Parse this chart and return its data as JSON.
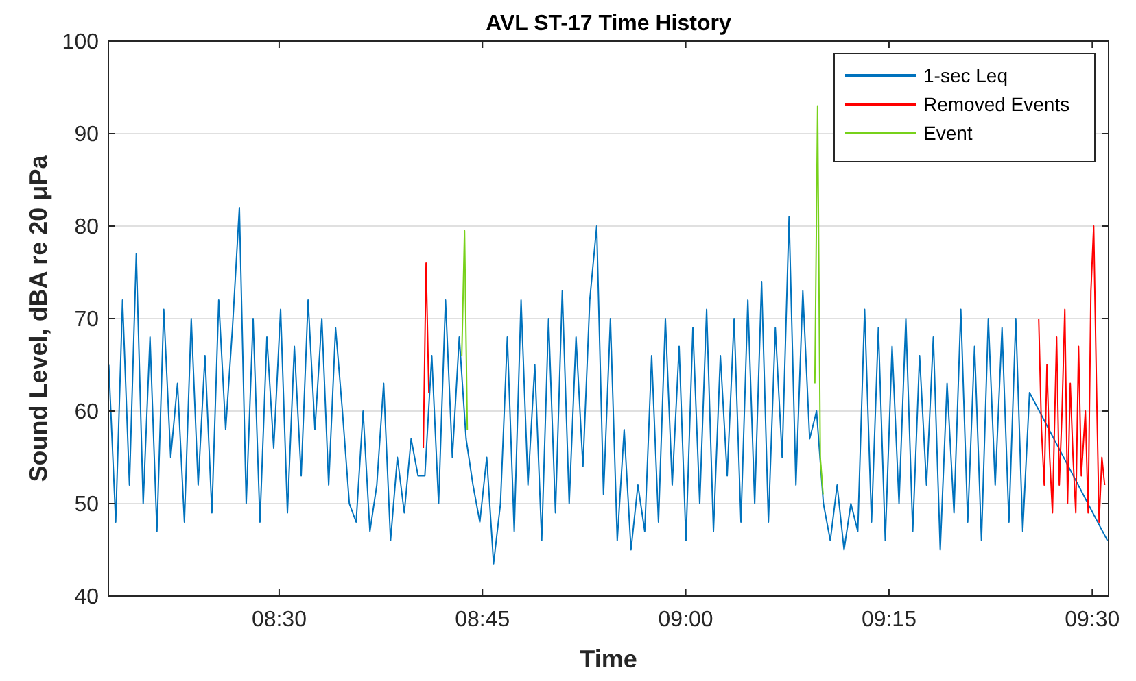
{
  "chart_data": {
    "type": "line",
    "title": "AVL ST-17 Time History",
    "xlabel": "Time",
    "ylabel": "Sound Level, dBA re 20 μPa",
    "xlim": [
      8.29,
      9.52
    ],
    "xticks": [
      {
        "value": 8.5,
        "label": "08:30"
      },
      {
        "value": 8.75,
        "label": "08:45"
      },
      {
        "value": 9,
        "label": "09:00"
      },
      {
        "value": 9.25,
        "label": "09:15"
      },
      {
        "value": 9.5,
        "label": "09:30"
      }
    ],
    "ylim": [
      40,
      100
    ],
    "yticks": [
      40,
      50,
      60,
      70,
      80,
      90,
      100
    ],
    "grid": "y",
    "legend": "top right",
    "line_style": "solid",
    "marker": "none",
    "series": [
      {
        "name": "1-sec Leq",
        "color": "#0072bd",
        "x": [
          8.2905,
          8.299,
          8.3074,
          8.3159,
          8.3243,
          8.3328,
          8.3412,
          8.3497,
          8.3581,
          8.3666,
          8.375,
          8.3835,
          8.3919,
          8.4004,
          8.4088,
          8.4173,
          8.4257,
          8.4342,
          8.4426,
          8.4511,
          8.4595,
          8.468,
          8.4764,
          8.4849,
          8.4933,
          8.5018,
          8.5102,
          8.5187,
          8.5271,
          8.5356,
          8.544,
          8.5525,
          8.5609,
          8.5694,
          8.5778,
          8.5863,
          8.5947,
          8.6032,
          8.6116,
          8.6201,
          8.6285,
          8.637,
          8.6454,
          8.6539,
          8.6623,
          8.6708,
          8.6792,
          8.6877,
          8.6961,
          8.7046,
          8.713,
          8.7215,
          8.7299,
          8.7384,
          8.7468,
          8.7553,
          8.7637,
          8.7722,
          8.7806,
          8.7891,
          8.7975,
          8.806,
          8.8144,
          8.8229,
          8.8313,
          8.8398,
          8.8482,
          8.8567,
          8.8651,
          8.8736,
          8.882,
          8.8905,
          8.8989,
          8.9074,
          8.9158,
          8.9243,
          8.9327,
          8.9412,
          8.9496,
          8.9581,
          8.9665,
          8.975,
          8.9834,
          8.9919,
          9.0003,
          9.0088,
          9.0172,
          9.0257,
          9.0341,
          9.0426,
          9.051,
          9.0595,
          9.0679,
          9.0764,
          9.0848,
          9.0933,
          9.1017,
          9.1102,
          9.1186,
          9.1271,
          9.1355,
          9.144,
          9.1524,
          9.1609,
          9.1693,
          9.1778,
          9.1862,
          9.1947,
          9.2031,
          9.2116,
          9.22,
          9.2285,
          9.2369,
          9.2454,
          9.2538,
          9.2623,
          9.2707,
          9.2792,
          9.2876,
          9.2961,
          9.3045,
          9.313,
          9.3214,
          9.3299,
          9.3383,
          9.3468,
          9.3552,
          9.3637,
          9.3721,
          9.3806,
          9.389,
          9.3975,
          9.4059,
          9.4144,
          9.4228,
          9.5186
        ],
        "values": [
          65,
          48,
          72,
          52,
          77,
          50,
          68,
          47,
          71,
          55,
          63,
          48,
          70,
          52,
          66,
          49,
          72,
          58,
          69,
          82,
          50,
          70,
          48,
          68,
          56,
          71,
          49,
          67,
          53,
          72,
          58,
          70,
          52,
          69,
          60,
          50,
          48,
          60,
          47,
          52,
          63,
          46,
          55,
          49,
          57,
          53,
          53,
          66,
          50,
          72,
          55,
          68,
          57,
          52,
          48,
          55,
          43.5,
          50,
          68,
          47,
          72,
          52,
          65,
          46,
          70,
          49,
          73,
          50,
          68,
          54,
          72,
          80,
          51,
          70,
          46,
          58,
          45,
          52,
          47,
          66,
          48,
          70,
          52,
          67,
          46,
          69,
          50,
          71,
          47,
          66,
          53,
          70,
          48,
          72,
          50,
          74,
          48,
          69,
          55,
          81,
          52,
          73,
          57,
          60,
          50,
          46,
          52,
          45,
          50,
          47,
          71,
          48,
          69,
          46,
          67,
          50,
          70,
          47,
          66,
          52,
          68,
          45,
          63,
          49,
          71,
          48,
          67,
          46,
          70,
          52,
          69,
          48,
          70,
          47,
          62,
          46
        ]
      },
      {
        "name": "Removed Events",
        "color": "#ff0000",
        "x": [
          8.6773,
          8.6807,
          8.6841,
          9.0,
          9.4341,
          9.4375,
          9.4409,
          9.4442,
          9.4476,
          9.451,
          9.4561,
          9.4594,
          9.4628,
          9.4662,
          9.4696,
          9.4729,
          9.4763,
          9.4797,
          9.4831,
          9.4865,
          9.4915,
          9.4949,
          9.4983,
          9.5017,
          9.5051,
          9.5084,
          9.5118,
          9.5152
        ],
        "values": [
          56,
          76,
          62,
          null,
          70,
          58,
          52,
          65,
          55,
          49,
          68,
          52,
          60,
          71,
          50,
          63,
          55,
          49,
          67,
          53,
          60,
          49,
          73,
          80,
          63,
          48,
          55,
          52
        ]
      },
      {
        "name": "Event",
        "color": "#77d11a",
        "x": [
          8.7246,
          8.728,
          8.7314,
          8.9,
          9.1588,
          9.1622,
          9.1655,
          9.1689
        ],
        "values": [
          66,
          79.5,
          58,
          null,
          63,
          93,
          55,
          51
        ]
      }
    ]
  }
}
